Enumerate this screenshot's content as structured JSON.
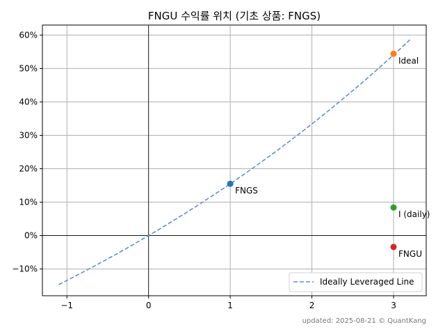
{
  "chart_data": {
    "type": "scatter",
    "title": "FNGU 수익률 위치 (기초 상품: FNGS)",
    "xlabel": "",
    "ylabel": "",
    "xlim": [
      -1.3,
      3.4
    ],
    "ylim": [
      -18,
      63
    ],
    "x_ticks": [
      -1,
      0,
      1,
      2,
      3
    ],
    "x_tick_labels": [
      "−1",
      "0",
      "1",
      "2",
      "3"
    ],
    "y_ticks": [
      -10,
      0,
      10,
      20,
      30,
      40,
      50,
      60
    ],
    "y_tick_labels": [
      "−10%",
      "0%",
      "10%",
      "20%",
      "30%",
      "40%",
      "50%",
      "60%"
    ],
    "grid": true,
    "line": {
      "name": "Ideally Leveraged Line",
      "style": "dashed",
      "color": "#5b8fdc",
      "base_return_pct": 15.5,
      "x_range": [
        -1.1,
        3.2
      ]
    },
    "points": [
      {
        "label": "FNGS",
        "x": 1,
        "y": 15.5,
        "color": "#1f77b4"
      },
      {
        "label": "Ideal",
        "x": 3,
        "y": 54.4,
        "color": "#ff7f0e"
      },
      {
        "label": "I (daily)",
        "x": 3,
        "y": 8.4,
        "color": "#2ca02c"
      },
      {
        "label": "FNGU",
        "x": 3,
        "y": -3.4,
        "color": "#d62728"
      }
    ],
    "legend": {
      "position": "lower-right",
      "entries": [
        "Ideally Leveraged Line"
      ]
    }
  },
  "footer": "updated: 2025-08-21 © QuantKang"
}
